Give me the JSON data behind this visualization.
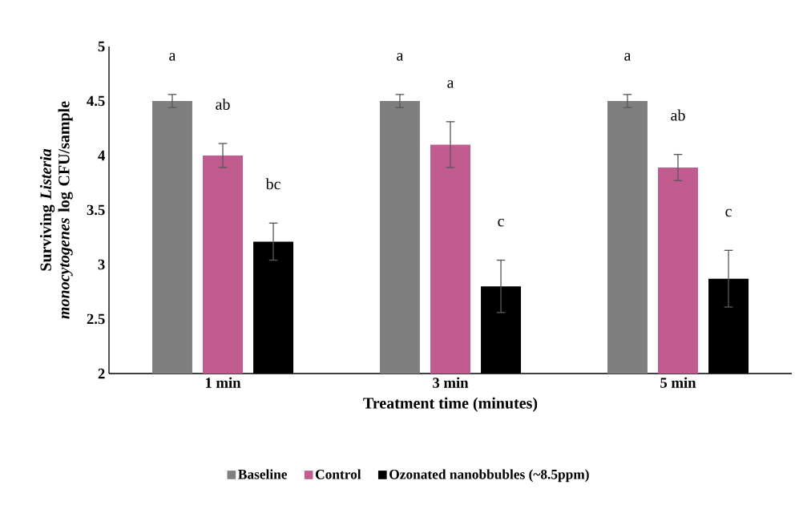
{
  "chart_data": {
    "type": "bar",
    "xlabel": "Treatment time (minutes)",
    "ylabel": "Surviving *Listeria monocytogenes* log CFU/sample",
    "categories": [
      "1 min",
      "3 min",
      "5 min"
    ],
    "series": [
      {
        "name": "Baseline",
        "color": "#7f7f7f",
        "values": [
          4.5,
          4.5,
          4.5
        ],
        "errors": [
          0.06,
          0.06,
          0.06
        ]
      },
      {
        "name": "Control",
        "color": "#c05c8f",
        "values": [
          4.0,
          4.1,
          3.89
        ],
        "errors": [
          0.11,
          0.21,
          0.12
        ]
      },
      {
        "name": "Ozonated nanobbubles (~8.5ppm)",
        "color": "#000000",
        "values": [
          3.21,
          2.8,
          2.87
        ],
        "errors": [
          0.17,
          0.24,
          0.26
        ]
      }
    ],
    "ylim": [
      2,
      5
    ],
    "yticks": [
      2,
      2.5,
      3,
      3.5,
      4,
      4.5,
      5
    ],
    "grid": false,
    "legend": "bottom",
    "annotations": [
      "a",
      "ab",
      "bc",
      "a",
      "a",
      "c",
      "a",
      "ab",
      "c"
    ]
  }
}
